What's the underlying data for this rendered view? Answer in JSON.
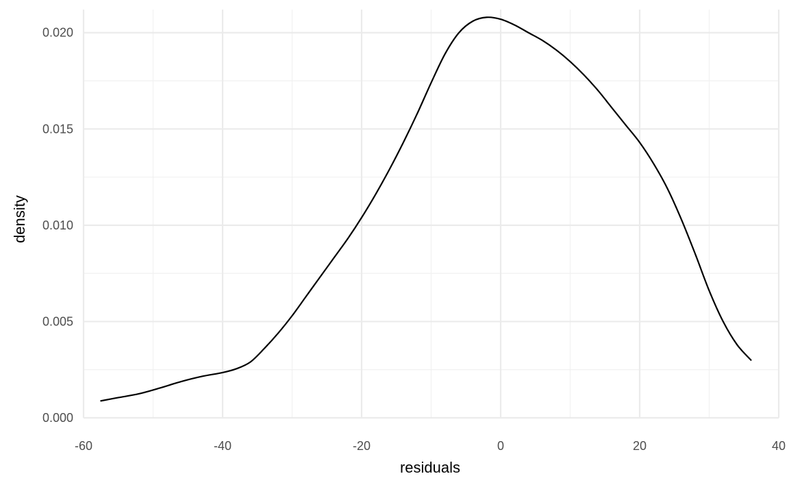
{
  "chart_data": {
    "type": "line",
    "title": "",
    "xlabel": "residuals",
    "ylabel": "density",
    "xlim": [
      -60,
      40
    ],
    "ylim": [
      0,
      0.0212
    ],
    "x_ticks": [
      -60,
      -40,
      -20,
      0,
      20,
      40
    ],
    "x_tick_labels": [
      "-60",
      "-40",
      "-20",
      "0",
      "20",
      "40"
    ],
    "x_minor_ticks": [
      -50,
      -30,
      -10,
      10,
      30
    ],
    "y_ticks": [
      0,
      0.005,
      0.01,
      0.015,
      0.02
    ],
    "y_tick_labels": [
      "0.000",
      "0.005",
      "0.010",
      "0.015",
      "0.020"
    ],
    "y_minor_ticks": [
      0.0025,
      0.0075,
      0.0125,
      0.0175
    ],
    "grid": true,
    "line_color": "#000000",
    "series": [
      {
        "x": [
          -57.5,
          -55,
          -52,
          -49,
          -46,
          -43,
          -40,
          -38,
          -36,
          -34,
          -32,
          -30,
          -28,
          -26,
          -24,
          -22,
          -20,
          -18,
          -16,
          -14,
          -12,
          -10,
          -8,
          -6,
          -4,
          -2,
          0,
          2,
          4,
          6,
          8,
          10,
          12,
          14,
          16,
          18,
          20,
          22,
          24,
          26,
          28,
          30,
          32,
          34,
          36
        ],
        "y": [
          0.00088,
          0.00105,
          0.00125,
          0.00155,
          0.00188,
          0.00215,
          0.00235,
          0.00255,
          0.0029,
          0.0036,
          0.0044,
          0.0053,
          0.0063,
          0.0073,
          0.0083,
          0.0093,
          0.0104,
          0.0116,
          0.0129,
          0.0143,
          0.0158,
          0.0174,
          0.0189,
          0.02,
          0.0206,
          0.0208,
          0.0207,
          0.0204,
          0.02,
          0.0196,
          0.0191,
          0.0185,
          0.0178,
          0.017,
          0.0161,
          0.0152,
          0.0143,
          0.0132,
          0.0119,
          0.0103,
          0.0085,
          0.0066,
          0.005,
          0.0038,
          0.003
        ]
      }
    ]
  }
}
